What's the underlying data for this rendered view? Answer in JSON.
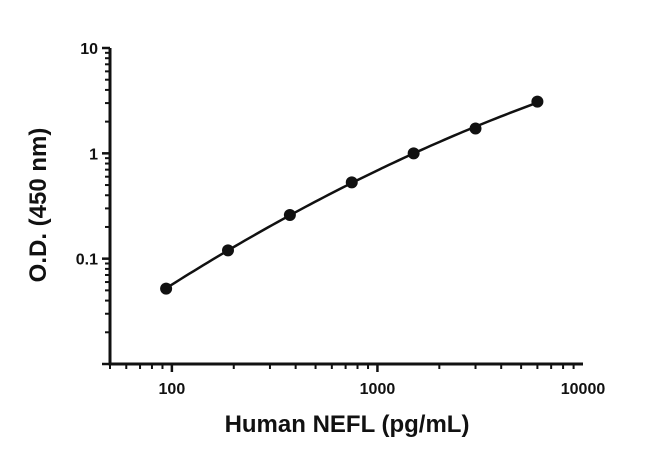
{
  "chart_data": {
    "type": "scatter",
    "x_scale": "log",
    "y_scale": "log",
    "xlabel": "Human NEFL (pg/mL)",
    "ylabel": "O.D. (450 nm)",
    "xlim": [
      50,
      10000
    ],
    "ylim": [
      0.01,
      10
    ],
    "x_ticks": [
      {
        "value": 100,
        "label": "100"
      },
      {
        "value": 1000,
        "label": "1000"
      },
      {
        "value": 10000,
        "label": "10000"
      }
    ],
    "y_ticks": [
      {
        "value": 0.1,
        "label": "0.1"
      },
      {
        "value": 1,
        "label": "1"
      },
      {
        "value": 10,
        "label": "10"
      }
    ],
    "grid": false,
    "legend": false,
    "has_fit_curve": true,
    "series": [
      {
        "x": [
          93.75,
          187.5,
          375,
          750,
          1500,
          3000,
          6000
        ],
        "y": [
          0.052,
          0.12,
          0.26,
          0.53,
          1.0,
          1.72,
          3.1
        ]
      }
    ]
  }
}
